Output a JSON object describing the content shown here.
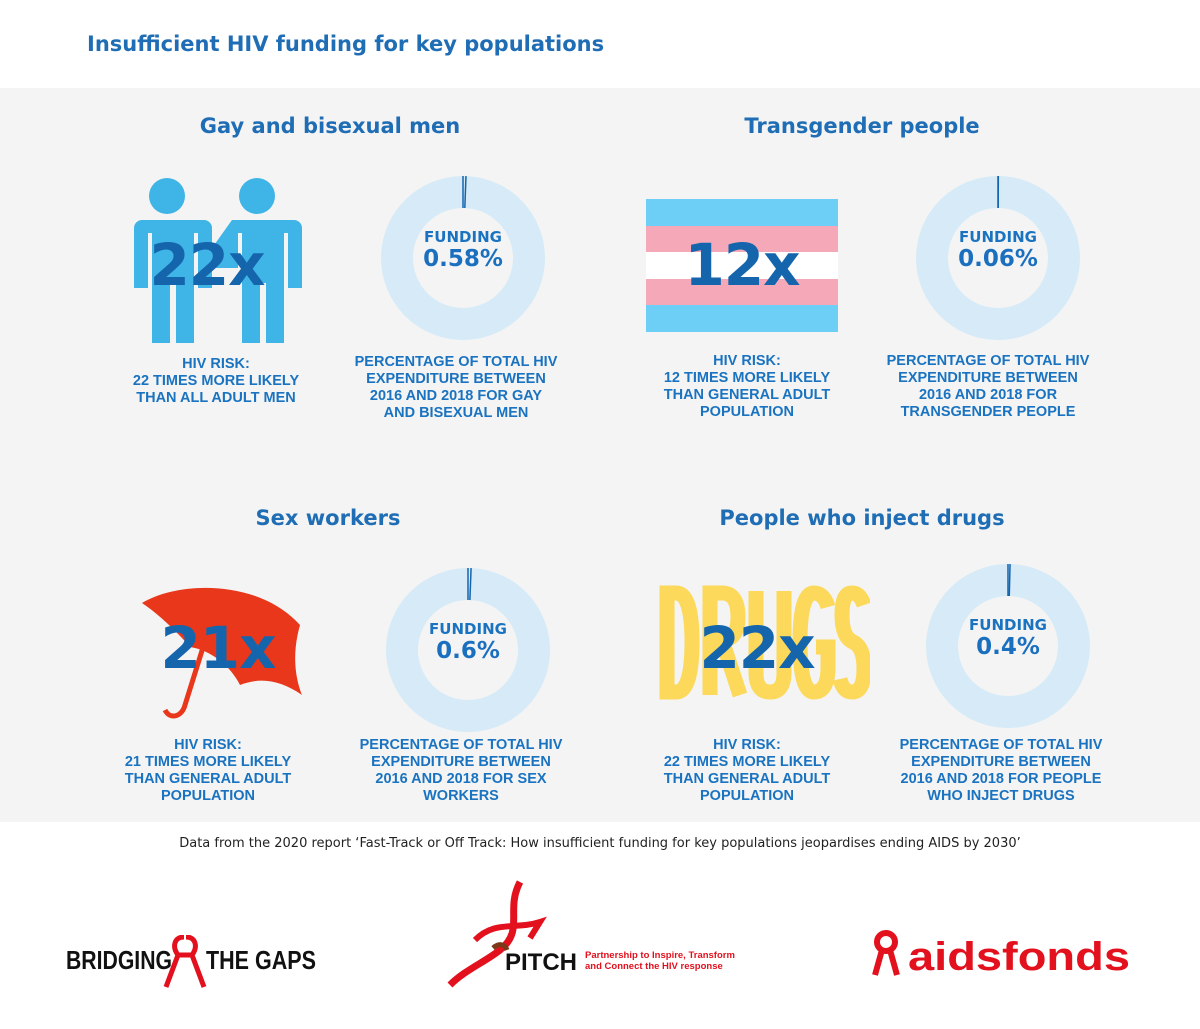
{
  "title": "Insufficient HIV funding for key populations",
  "colors": {
    "accent": "#1f6db5",
    "donut_bg": "#d6ebf7",
    "donut_marker": "#1565ad",
    "people": "#3fb4e6",
    "umbrella": "#e8371a",
    "drugs": "#fcd95a",
    "trans_blue": "#6ecff6",
    "trans_pink": "#f5a9b8",
    "logo_red": "#e3101d"
  },
  "panels": [
    {
      "heading": "Gay and bisexual men",
      "risk_big": "22x",
      "icon": "two-people-icon",
      "risk_caption": [
        "HIV RISK:",
        "22 TIMES MORE LIKELY",
        "THAN ALL ADULT MEN"
      ],
      "funding_label": "FUNDING",
      "funding_value": "0.58%",
      "funding_percent": 0.58,
      "funding_caption": [
        "PERCENTAGE OF TOTAL HIV",
        "EXPENDITURE BETWEEN",
        "2016 AND 2018 FOR GAY",
        "AND BISEXUAL MEN"
      ]
    },
    {
      "heading": "Transgender people",
      "risk_big": "12x",
      "icon": "transgender-flag-icon",
      "risk_caption": [
        "HIV RISK:",
        "12 TIMES MORE LIKELY",
        "THAN GENERAL ADULT",
        "POPULATION"
      ],
      "funding_label": "FUNDING",
      "funding_value": "0.06%",
      "funding_percent": 0.06,
      "funding_caption": [
        "PERCENTAGE OF TOTAL HIV",
        "EXPENDITURE BETWEEN",
        "2016 AND 2018 FOR",
        "TRANSGENDER PEOPLE"
      ]
    },
    {
      "heading": "Sex workers",
      "risk_big": "21x",
      "icon": "umbrella-icon",
      "risk_caption": [
        "HIV RISK:",
        "21 TIMES MORE LIKELY",
        "THAN GENERAL ADULT",
        "POPULATION"
      ],
      "funding_label": "FUNDING",
      "funding_value": "0.6%",
      "funding_percent": 0.6,
      "funding_caption": [
        "PERCENTAGE OF TOTAL HIV",
        "EXPENDITURE BETWEEN",
        "2016 AND 2018 FOR SEX",
        "WORKERS"
      ]
    },
    {
      "heading": "People who inject drugs",
      "risk_big": "22x",
      "icon": "drugs-text-icon",
      "icon_text": "DRUGS",
      "risk_caption": [
        "HIV RISK:",
        "22 TIMES MORE LIKELY",
        "THAN GENERAL ADULT",
        "POPULATION"
      ],
      "funding_label": "FUNDING",
      "funding_value": "0.4%",
      "funding_percent": 0.4,
      "funding_caption": [
        "PERCENTAGE OF TOTAL HIV",
        "EXPENDITURE BETWEEN",
        "2016 AND 2018 FOR PEOPLE",
        "WHO INJECT DRUGS"
      ]
    }
  ],
  "note": "Data from the 2020 report ‘Fast-Track or Off Track: How insufficient funding for key populations jeopardises ending AIDS by 2030’",
  "logos": {
    "btg": "BRIDGING THE GAPS",
    "btg_left": "BRIDGING",
    "btg_right": "THE GAPS",
    "pitch": "PITCH",
    "pitch_tag1": "Partnership to Inspire, Transform",
    "pitch_tag2": "and Connect the HIV response",
    "aidsfonds": "aidsfonds"
  }
}
